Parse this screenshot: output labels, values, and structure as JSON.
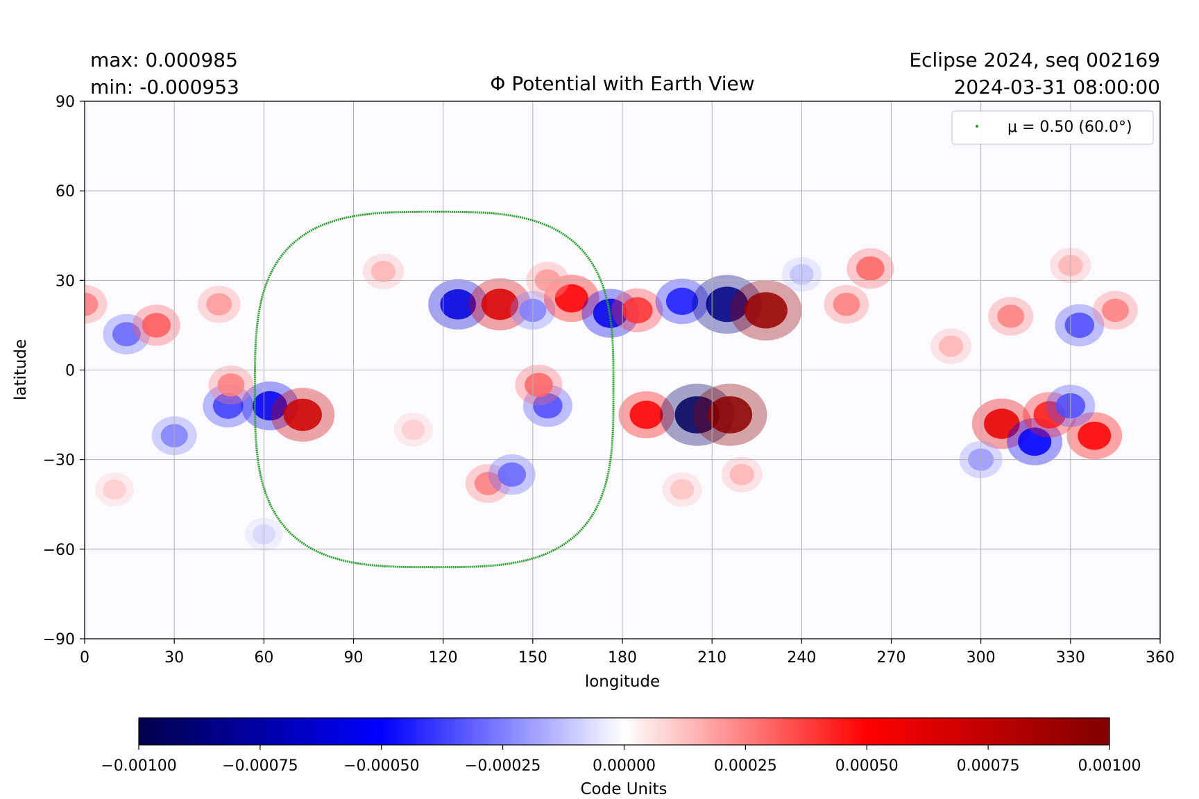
{
  "header": {
    "max_label": "max:  0.000985",
    "min_label": "min:  -0.000953",
    "title": "Φ Potential with Earth View",
    "sequence": "Eclipse 2024, seq 002169",
    "timestamp": "2024-03-31 08:00:00"
  },
  "chart_data": {
    "type": "heatmap",
    "title": "Φ Potential with Earth View",
    "xlabel": "longitude",
    "ylabel": "latitude",
    "xlim": [
      0,
      360
    ],
    "ylim": [
      -90,
      90
    ],
    "xticks": [
      0,
      30,
      60,
      90,
      120,
      150,
      180,
      210,
      240,
      270,
      300,
      330,
      360
    ],
    "xtick_labels": [
      "0",
      "30",
      "60",
      "90",
      "120",
      "150",
      "180",
      "210",
      "240",
      "270",
      "300",
      "330",
      "360"
    ],
    "yticks": [
      90,
      60,
      30,
      0,
      -30,
      -60,
      -90
    ],
    "ytick_labels": [
      "90",
      "60",
      "30",
      "0",
      "−30",
      "−60",
      "−90"
    ],
    "grid": true,
    "value_range": {
      "max": 0.000985,
      "min": -0.000953
    },
    "colormap": "seismic",
    "colormap_stops": [
      "#00004c",
      "#0000ff",
      "#ffffff",
      "#ff0000",
      "#7f0000"
    ],
    "colorbar": {
      "label": "Code Units",
      "range": [
        -0.001,
        0.001
      ],
      "ticks": [
        -0.001,
        -0.00075,
        -0.0005,
        -0.00025,
        0,
        0.00025,
        0.0005,
        0.00075,
        0.001
      ],
      "tick_labels": [
        "−0.00100",
        "−0.00075",
        "−0.00050",
        "−0.00025",
        "0.00000",
        "0.00025",
        "0.00050",
        "0.00075",
        "0.00100"
      ]
    },
    "blobs": [
      {
        "lon": 14,
        "lat": 12,
        "sign": -1,
        "mag": 0.3
      },
      {
        "lon": 24,
        "lat": 15,
        "sign": 1,
        "mag": 0.32
      },
      {
        "lon": 0,
        "lat": 22,
        "sign": 1,
        "mag": 0.25
      },
      {
        "lon": 45,
        "lat": 22,
        "sign": 1,
        "mag": 0.2
      },
      {
        "lon": 30,
        "lat": -22,
        "sign": -1,
        "mag": 0.25
      },
      {
        "lon": 48,
        "lat": -12,
        "sign": -1,
        "mag": 0.38
      },
      {
        "lon": 62,
        "lat": -12,
        "sign": -1,
        "mag": 0.55
      },
      {
        "lon": 73,
        "lat": -15,
        "sign": 1,
        "mag": 0.7
      },
      {
        "lon": 49,
        "lat": -5,
        "sign": 1,
        "mag": 0.25
      },
      {
        "lon": 125,
        "lat": 22,
        "sign": -1,
        "mag": 0.6
      },
      {
        "lon": 139,
        "lat": 22,
        "sign": 1,
        "mag": 0.65
      },
      {
        "lon": 150,
        "lat": 20,
        "sign": -1,
        "mag": 0.25
      },
      {
        "lon": 163,
        "lat": 24,
        "sign": 1,
        "mag": 0.5
      },
      {
        "lon": 176,
        "lat": 19,
        "sign": -1,
        "mag": 0.55
      },
      {
        "lon": 185,
        "lat": 20,
        "sign": 1,
        "mag": 0.4
      },
      {
        "lon": 200,
        "lat": 23,
        "sign": -1,
        "mag": 0.45
      },
      {
        "lon": 215,
        "lat": 22,
        "sign": -1,
        "mag": 0.85
      },
      {
        "lon": 228,
        "lat": 20,
        "sign": 1,
        "mag": 0.9
      },
      {
        "lon": 255,
        "lat": 22,
        "sign": 1,
        "mag": 0.25
      },
      {
        "lon": 263,
        "lat": 34,
        "sign": 1,
        "mag": 0.3
      },
      {
        "lon": 100,
        "lat": 33,
        "sign": 1,
        "mag": 0.15
      },
      {
        "lon": 155,
        "lat": 30,
        "sign": 1,
        "mag": 0.2
      },
      {
        "lon": 155,
        "lat": -12,
        "sign": -1,
        "mag": 0.35
      },
      {
        "lon": 152,
        "lat": -5,
        "sign": 1,
        "mag": 0.3
      },
      {
        "lon": 188,
        "lat": -15,
        "sign": 1,
        "mag": 0.5
      },
      {
        "lon": 205,
        "lat": -15,
        "sign": -1,
        "mag": 0.95
      },
      {
        "lon": 216,
        "lat": -15,
        "sign": 1,
        "mag": 0.95
      },
      {
        "lon": 220,
        "lat": -35,
        "sign": 1,
        "mag": 0.15
      },
      {
        "lon": 135,
        "lat": -38,
        "sign": 1,
        "mag": 0.25
      },
      {
        "lon": 143,
        "lat": -35,
        "sign": -1,
        "mag": 0.3
      },
      {
        "lon": 307,
        "lat": -18,
        "sign": 1,
        "mag": 0.6
      },
      {
        "lon": 318,
        "lat": -24,
        "sign": -1,
        "mag": 0.5
      },
      {
        "lon": 323,
        "lat": -15,
        "sign": 1,
        "mag": 0.45
      },
      {
        "lon": 338,
        "lat": -22,
        "sign": 1,
        "mag": 0.5
      },
      {
        "lon": 330,
        "lat": -12,
        "sign": -1,
        "mag": 0.35
      },
      {
        "lon": 310,
        "lat": 18,
        "sign": 1,
        "mag": 0.25
      },
      {
        "lon": 333,
        "lat": 15,
        "sign": -1,
        "mag": 0.35
      },
      {
        "lon": 345,
        "lat": 20,
        "sign": 1,
        "mag": 0.25
      },
      {
        "lon": 330,
        "lat": 35,
        "sign": 1,
        "mag": 0.15
      },
      {
        "lon": 290,
        "lat": 8,
        "sign": 1,
        "mag": 0.15
      },
      {
        "lon": 300,
        "lat": -30,
        "sign": -1,
        "mag": 0.2
      },
      {
        "lon": 110,
        "lat": -20,
        "sign": 1,
        "mag": 0.1
      },
      {
        "lon": 10,
        "lat": -40,
        "sign": 1,
        "mag": 0.1
      },
      {
        "lon": 60,
        "lat": -55,
        "sign": -1,
        "mag": 0.08
      },
      {
        "lon": 240,
        "lat": 32,
        "sign": -1,
        "mag": 0.12
      },
      {
        "lon": 200,
        "lat": -40,
        "sign": 1,
        "mag": 0.12
      }
    ],
    "earth_view_contour": {
      "series_name": "μ = 0.50 (60.0°)",
      "color": "#2ca02c",
      "center_lon": 117,
      "center_lat": -7,
      "lon_half_width": 60,
      "lat_top": 53,
      "lat_bottom": -66
    },
    "legend": {
      "placement": "top-right",
      "entries": [
        "μ = 0.50 (60.0°)"
      ]
    }
  }
}
